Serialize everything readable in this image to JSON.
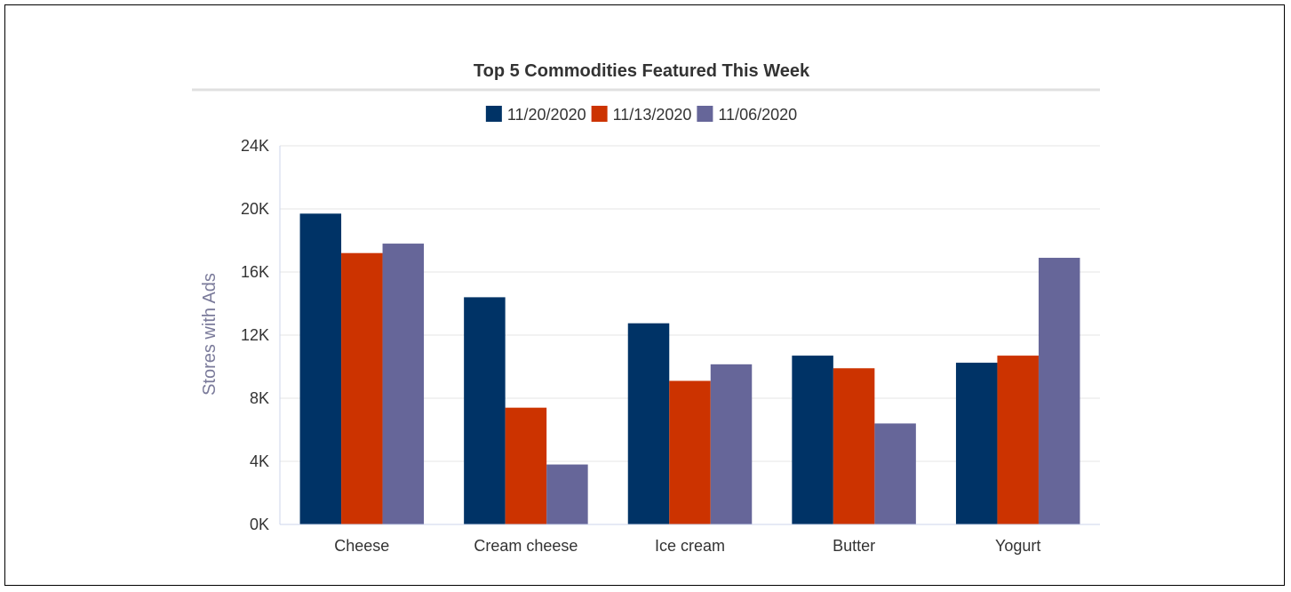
{
  "chart_data": {
    "type": "bar",
    "title": "Top 5 Commodities Featured This Week",
    "xlabel": "",
    "ylabel": "Stores with Ads",
    "categories": [
      "Cheese",
      "Cream cheese",
      "Ice cream",
      "Butter",
      "Yogurt"
    ],
    "series": [
      {
        "name": "11/20/2020",
        "color": "#003366",
        "values": [
          19700,
          14400,
          12750,
          10700,
          10250
        ]
      },
      {
        "name": "11/13/2020",
        "color": "#cc3300",
        "values": [
          17200,
          7400,
          9100,
          9900,
          10700
        ]
      },
      {
        "name": "11/06/2020",
        "color": "#666699",
        "values": [
          17800,
          3800,
          10150,
          6400,
          16900
        ]
      }
    ],
    "ylim": [
      0,
      24000
    ],
    "yticks": [
      0,
      4000,
      8000,
      12000,
      16000,
      20000,
      24000
    ],
    "ytick_labels": [
      "0K",
      "4K",
      "8K",
      "12K",
      "16K",
      "20K",
      "24K"
    ],
    "grid": true,
    "legend_position": "top-center"
  }
}
